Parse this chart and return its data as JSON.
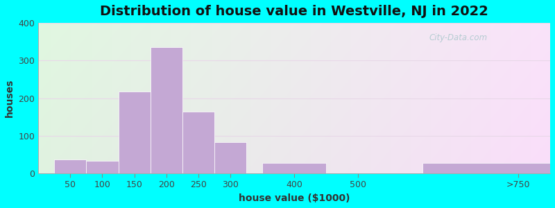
{
  "title": "Distribution of house value in Westville, NJ in 2022",
  "xlabel": "house value ($1000)",
  "ylabel": "houses",
  "background_outer": "#00FFFF",
  "bar_color": "#C4A8D4",
  "ylim": [
    0,
    400
  ],
  "yticks": [
    0,
    100,
    200,
    300,
    400
  ],
  "x_tick_labels": [
    "50",
    "100",
    "150",
    "200",
    "250",
    "300",
    "400",
    "500",
    ">750"
  ],
  "x_tick_positions": [
    50,
    100,
    150,
    200,
    250,
    300,
    400,
    500,
    750
  ],
  "bar_left_edges": [
    25,
    75,
    125,
    175,
    225,
    275,
    350,
    475,
    600
  ],
  "bar_widths": [
    50,
    50,
    50,
    50,
    50,
    50,
    100,
    100,
    200
  ],
  "values": [
    37,
    33,
    217,
    335,
    165,
    83,
    27,
    0,
    27
  ],
  "watermark": "City-Data.com",
  "title_fontsize": 14,
  "axis_label_fontsize": 10
}
